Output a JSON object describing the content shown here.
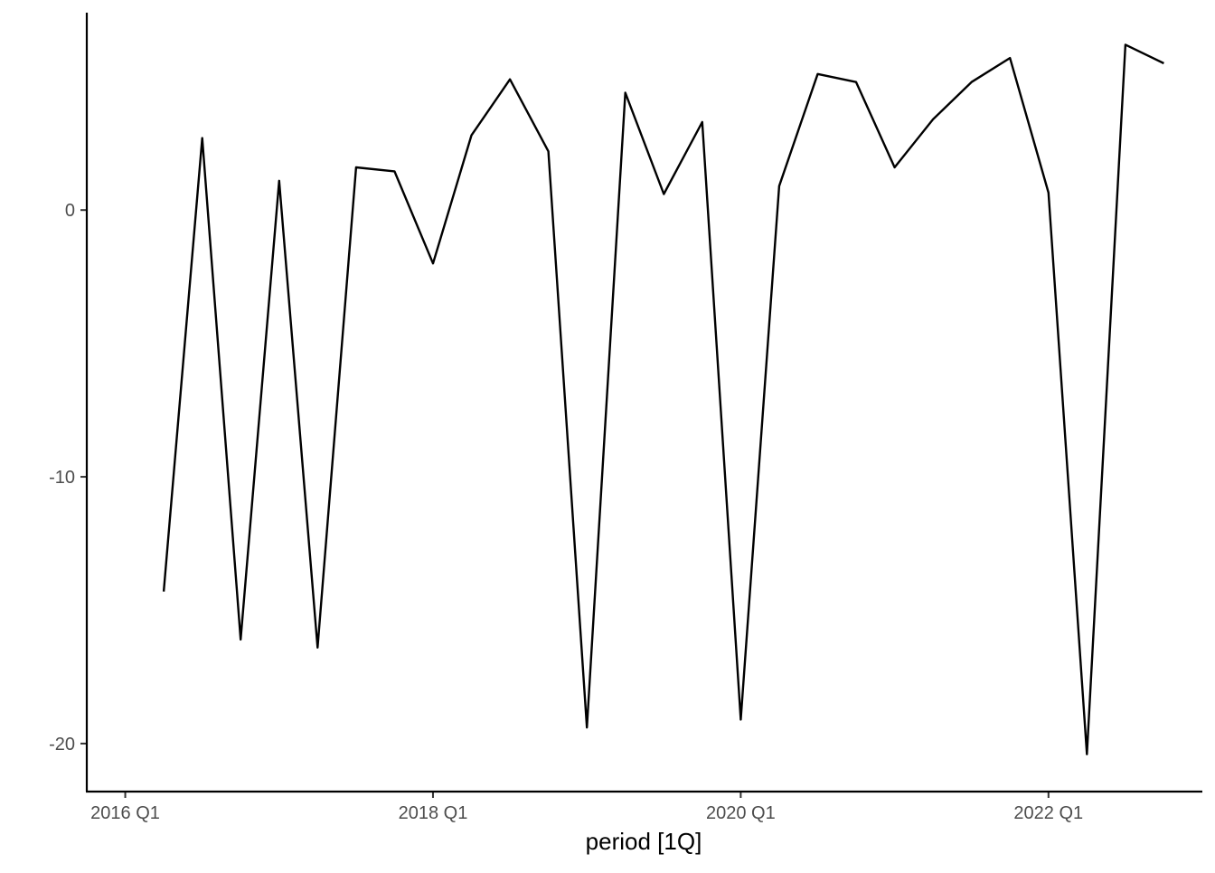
{
  "chart_data": {
    "type": "line",
    "title": "",
    "xlabel": "period [1Q]",
    "ylabel": "",
    "grid": false,
    "x_ticks": [
      "2016 Q1",
      "2018 Q1",
      "2020 Q1",
      "2022 Q1"
    ],
    "y_ticks": [
      "0",
      "-10",
      "-20"
    ],
    "ylim": [
      -21.8,
      7.4
    ],
    "xlim": [
      "2015 Q4",
      "2023 Q1"
    ],
    "series": [
      {
        "color": "#000000",
        "x": [
          "2016 Q2",
          "2016 Q3",
          "2016 Q4",
          "2017 Q1",
          "2017 Q2",
          "2017 Q3",
          "2017 Q4",
          "2018 Q1",
          "2018 Q2",
          "2018 Q3",
          "2018 Q4",
          "2019 Q1",
          "2019 Q2",
          "2019 Q3",
          "2019 Q4",
          "2020 Q1",
          "2020 Q2",
          "2020 Q3",
          "2020 Q4",
          "2021 Q1",
          "2021 Q2",
          "2021 Q3",
          "2021 Q4",
          "2022 Q1",
          "2022 Q2",
          "2022 Q3",
          "2022 Q4"
        ],
        "values": [
          -14.3,
          2.7,
          -16.1,
          1.1,
          -16.4,
          1.6,
          1.45,
          -2.0,
          2.8,
          4.9,
          2.2,
          -19.4,
          4.4,
          0.6,
          3.3,
          -19.1,
          0.9,
          5.1,
          4.8,
          1.6,
          3.4,
          4.8,
          5.7,
          0.65,
          -20.4,
          6.2,
          5.5
        ]
      }
    ]
  }
}
